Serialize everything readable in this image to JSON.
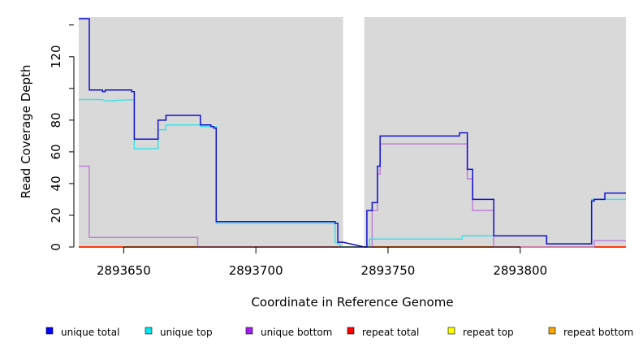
{
  "chart_data": {
    "type": "line",
    "xlabel": "Coordinate in Reference Genome",
    "ylabel": "Read Coverage Depth",
    "xlim": [
      2893633,
      2893840
    ],
    "ylim": [
      0,
      145
    ],
    "x_ticks": [
      2893650,
      2893700,
      2893750,
      2893800
    ],
    "x_tick_labels": [
      "2893650",
      "2893700",
      "2893750",
      "2893800"
    ],
    "y_ticks": [
      0,
      20,
      40,
      60,
      80,
      120
    ],
    "y_tick_labels": [
      "0",
      "20",
      "40",
      "60",
      "80",
      "120"
    ],
    "gap_region": [
      2893733,
      2893741
    ],
    "grid": false,
    "legend_position": "bottom",
    "series": [
      {
        "name": "repeat bottom",
        "color": "#FFA500",
        "x": [
          2893633,
          2893840
        ],
        "y": [
          0,
          0
        ]
      },
      {
        "name": "repeat top",
        "color": "#FFFF00",
        "x": [
          2893633,
          2893840
        ],
        "y": [
          0,
          0
        ]
      },
      {
        "name": "repeat total",
        "color": "#FF0000",
        "x": [
          2893633,
          2893840
        ],
        "y": [
          0,
          0
        ]
      },
      {
        "name": "unique bottom",
        "color": "#C080D8",
        "x": [
          2893633,
          2893637,
          2893637,
          2893678,
          2893678,
          2893744,
          2893744,
          2893746,
          2893746,
          2893747,
          2893747,
          2893780,
          2893780,
          2893782,
          2893782,
          2893790,
          2893790,
          2893828,
          2893828,
          2893840
        ],
        "y": [
          51,
          51,
          6,
          6,
          0,
          0,
          23,
          23,
          46,
          46,
          65,
          65,
          43,
          43,
          23,
          23,
          0,
          0,
          4,
          4
        ]
      },
      {
        "name": "unique top",
        "color": "#40E0E8",
        "x": [
          2893633,
          2893642,
          2893643,
          2893654,
          2893654,
          2893663,
          2893663,
          2893666,
          2893666,
          2893679,
          2893679,
          2893685,
          2893685,
          2893730,
          2893730,
          2893733,
          2893741,
          2893743,
          2893743,
          2893778,
          2893778,
          2893790,
          2893790,
          2893810,
          2893810,
          2893827,
          2893827,
          2893840
        ],
        "y": [
          93,
          93,
          92,
          93,
          62,
          62,
          74,
          74,
          77,
          77,
          76,
          76,
          15,
          15,
          3,
          0,
          0,
          0,
          5,
          5,
          7,
          7,
          7,
          7,
          2,
          2,
          30,
          30
        ]
      },
      {
        "name": "unique total",
        "color": "#1010D0",
        "x": [
          2893633,
          2893637,
          2893637,
          2893642,
          2893642,
          2893643,
          2893643,
          2893653,
          2893653,
          2893654,
          2893654,
          2893663,
          2893663,
          2893666,
          2893666,
          2893679,
          2893679,
          2893683,
          2893683,
          2893684,
          2893684,
          2893685,
          2893685,
          2893730,
          2893730,
          2893731,
          2893731,
          2893733,
          2893741,
          2893742,
          2893742,
          2893744,
          2893744,
          2893746,
          2893746,
          2893747,
          2893747,
          2893777,
          2893777,
          2893780,
          2893780,
          2893782,
          2893782,
          2893790,
          2893790,
          2893810,
          2893810,
          2893827,
          2893827,
          2893828,
          2893828,
          2893832,
          2893832,
          2893840
        ],
        "y": [
          144,
          144,
          99,
          99,
          98,
          98,
          99,
          99,
          98,
          98,
          68,
          68,
          80,
          80,
          83,
          83,
          77,
          77,
          76,
          76,
          75,
          75,
          16,
          16,
          15,
          15,
          3,
          3,
          0,
          0,
          23,
          23,
          28,
          28,
          51,
          51,
          70,
          70,
          72,
          72,
          49,
          49,
          30,
          30,
          7,
          7,
          2,
          2,
          29,
          29,
          30,
          30,
          34,
          34
        ]
      }
    ],
    "legend": [
      {
        "label": "unique total",
        "color": "#0000FF"
      },
      {
        "label": "unique top",
        "color": "#00E5EE"
      },
      {
        "label": "unique bottom",
        "color": "#A020F0"
      },
      {
        "label": "repeat total",
        "color": "#FF0000"
      },
      {
        "label": "repeat top",
        "color": "#FFFF00"
      },
      {
        "label": "repeat bottom",
        "color": "#FFA500"
      }
    ]
  }
}
